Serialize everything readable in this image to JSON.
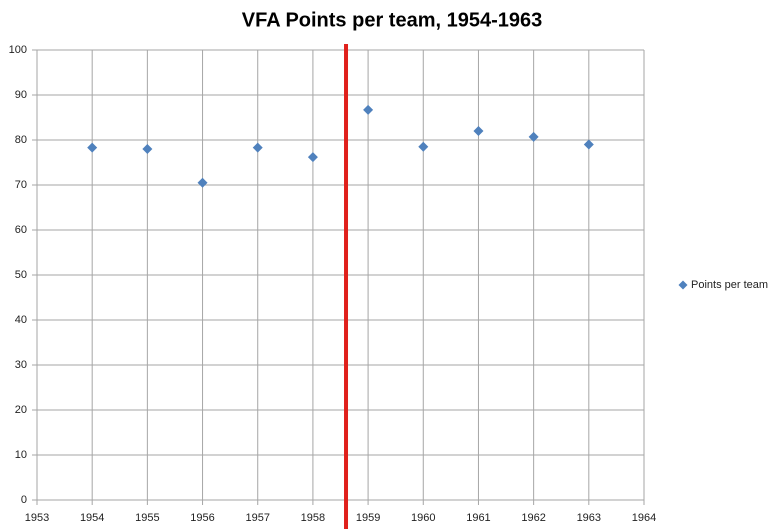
{
  "chart_data": {
    "type": "scatter",
    "title": "VFA Points per team, 1954-1963",
    "x": [
      1954,
      1955,
      1956,
      1957,
      1958,
      1959,
      1960,
      1961,
      1962,
      1963
    ],
    "series": [
      {
        "name": "Points per team",
        "color": "#4f81bd",
        "values": [
          78.3,
          78,
          70.5,
          78.3,
          76.2,
          86.7,
          78.5,
          82,
          80.7,
          79
        ]
      }
    ],
    "xlim": [
      1953,
      1964
    ],
    "xticks": [
      1953,
      1954,
      1955,
      1956,
      1957,
      1958,
      1959,
      1960,
      1961,
      1962,
      1963,
      1964
    ],
    "ylim": [
      0,
      100
    ],
    "yticks": [
      0,
      10,
      20,
      30,
      40,
      50,
      60,
      70,
      80,
      90,
      100
    ],
    "grid": true,
    "legend": "right",
    "vline_x": 1958.6,
    "vline_color": "#e0201b"
  }
}
